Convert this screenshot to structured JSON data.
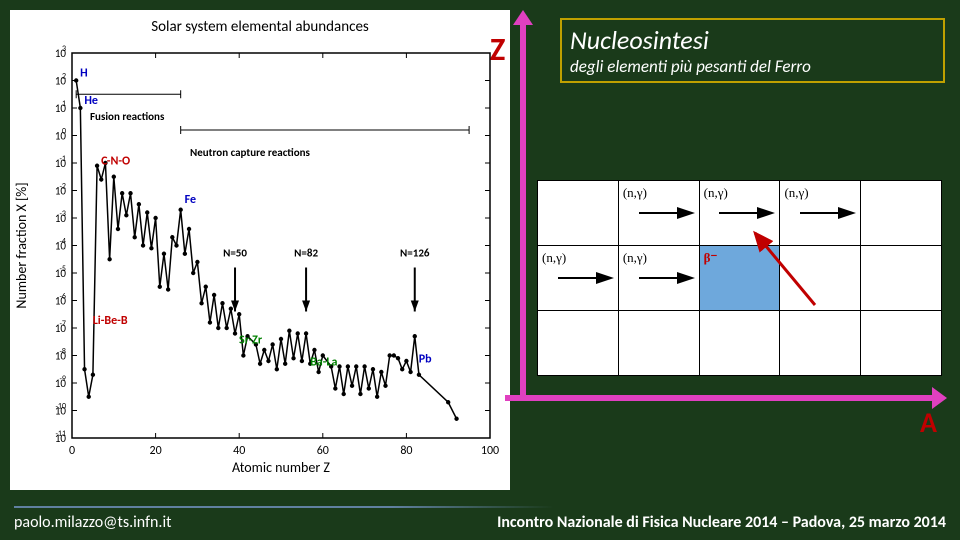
{
  "chart": {
    "title": "Solar system elemental abundances",
    "ylabel": "Number fraction X [%]",
    "xlabel": "Atomic number Z",
    "xlim": [
      0,
      100
    ],
    "xtick_step": 20,
    "ylim_exp": [
      -11,
      3
    ],
    "ytick_exps": [
      -11,
      -10,
      -9,
      -8,
      -7,
      -6,
      -5,
      -4,
      -3,
      -2,
      -1,
      0,
      1,
      2,
      3
    ],
    "fusion_label": "Fusion reactions",
    "neutron_label": "Neutron capture reactions",
    "series_color": "#000000",
    "background_color": "#ffffff",
    "element_labels": [
      {
        "text": "H",
        "x": 1,
        "yexp": 2,
        "color": "#0000c0"
      },
      {
        "text": "He",
        "x": 2,
        "yexp": 1,
        "color": "#0000c0"
      },
      {
        "text": "C-N-O",
        "x": 6,
        "yexp": -1.2,
        "color": "#c00000"
      },
      {
        "text": "Li-Be-B",
        "x": 4,
        "yexp": -7,
        "color": "#c00000"
      },
      {
        "text": "Fe",
        "x": 26,
        "yexp": -2.6,
        "color": "#0000c0"
      },
      {
        "text": "Sr-Zr",
        "x": 39,
        "yexp": -7.7,
        "color": "#008000"
      },
      {
        "text": "Ba-La",
        "x": 56,
        "yexp": -8.5,
        "color": "#008000"
      },
      {
        "text": "Pb",
        "x": 82,
        "yexp": -8.4,
        "color": "#0000c0"
      }
    ],
    "magic_labels": [
      {
        "text": "N=50",
        "x": 39
      },
      {
        "text": "N=82",
        "x": 56
      },
      {
        "text": "N=126",
        "x": 82
      }
    ],
    "data": [
      [
        1,
        2.0
      ],
      [
        2,
        1.0
      ],
      [
        3,
        -8.5
      ],
      [
        4,
        -9.5
      ],
      [
        5,
        -8.7
      ],
      [
        6,
        -1.1
      ],
      [
        7,
        -1.6
      ],
      [
        8,
        -1.0
      ],
      [
        9,
        -4.5
      ],
      [
        10,
        -1.5
      ],
      [
        11,
        -3.4
      ],
      [
        12,
        -2.1
      ],
      [
        13,
        -2.9
      ],
      [
        14,
        -2.1
      ],
      [
        15,
        -3.7
      ],
      [
        16,
        -2.5
      ],
      [
        17,
        -4.0
      ],
      [
        18,
        -2.8
      ],
      [
        19,
        -4.1
      ],
      [
        20,
        -3.0
      ],
      [
        21,
        -5.5
      ],
      [
        22,
        -4.3
      ],
      [
        23,
        -5.6
      ],
      [
        24,
        -3.7
      ],
      [
        25,
        -4.0
      ],
      [
        26,
        -2.7
      ],
      [
        27,
        -4.3
      ],
      [
        28,
        -3.4
      ],
      [
        29,
        -5.0
      ],
      [
        30,
        -4.6
      ],
      [
        31,
        -6.1
      ],
      [
        32,
        -5.5
      ],
      [
        33,
        -6.8
      ],
      [
        34,
        -5.8
      ],
      [
        35,
        -7.0
      ],
      [
        36,
        -6.1
      ],
      [
        37,
        -7.0
      ],
      [
        38,
        -6.3
      ],
      [
        39,
        -7.2
      ],
      [
        40,
        -6.5
      ],
      [
        41,
        -8.0
      ],
      [
        42,
        -7.3
      ],
      [
        44,
        -7.6
      ],
      [
        45,
        -8.3
      ],
      [
        46,
        -7.8
      ],
      [
        47,
        -8.2
      ],
      [
        48,
        -7.6
      ],
      [
        49,
        -8.5
      ],
      [
        50,
        -7.4
      ],
      [
        51,
        -8.3
      ],
      [
        52,
        -7.1
      ],
      [
        53,
        -8.1
      ],
      [
        54,
        -7.2
      ],
      [
        55,
        -8.2
      ],
      [
        56,
        -7.2
      ],
      [
        57,
        -8.3
      ],
      [
        58,
        -7.8
      ],
      [
        59,
        -8.6
      ],
      [
        60,
        -8.0
      ],
      [
        62,
        -8.4
      ],
      [
        63,
        -9.2
      ],
      [
        64,
        -8.4
      ],
      [
        65,
        -9.4
      ],
      [
        66,
        -8.4
      ],
      [
        67,
        -9.1
      ],
      [
        68,
        -8.4
      ],
      [
        69,
        -9.4
      ],
      [
        70,
        -8.4
      ],
      [
        71,
        -9.2
      ],
      [
        72,
        -8.5
      ],
      [
        73,
        -9.5
      ],
      [
        74,
        -8.6
      ],
      [
        75,
        -9.1
      ],
      [
        76,
        -8.0
      ],
      [
        77,
        -8.0
      ],
      [
        78,
        -8.1
      ],
      [
        79,
        -8.5
      ],
      [
        80,
        -8.2
      ],
      [
        81,
        -8.6
      ],
      [
        82,
        -7.3
      ],
      [
        83,
        -8.7
      ],
      [
        90,
        -9.7
      ],
      [
        92,
        -10.3
      ]
    ]
  },
  "zlabel": "Z",
  "alabel": "A",
  "title_box": {
    "main": "Nucleosintesi",
    "sub": "degli elementi più pesanti del Ferro",
    "border_color": "#c0a000",
    "text_color": "#ffffff"
  },
  "grid": {
    "neutron_capture": "(n,γ)",
    "beta_decay": "β⁻",
    "cell_blue_bg": "#6ea8dc",
    "beta_color": "#c00000",
    "beta_arrow_color": "#c00000",
    "cells": [
      [
        null,
        {
          "label": "(n,γ)",
          "arrow": true
        },
        {
          "label": "(n,γ)",
          "arrow": true
        },
        {
          "label": "(n,γ)",
          "arrow": true
        },
        null
      ],
      [
        {
          "label": "(n,γ)",
          "arrow": true
        },
        {
          "label": "(n,γ)",
          "arrow": true,
          "blue": false
        },
        {
          "beta": "β⁻",
          "blue": true
        },
        null,
        null
      ],
      [
        null,
        null,
        null,
        null,
        null
      ]
    ]
  },
  "footer": {
    "left": "paolo.milazzo@ts.infn.it",
    "right": "Incontro Nazionale di Fisica Nucleare 2014 – Padova, 25 marzo 2014"
  },
  "colors": {
    "page_bg": "#1a3a1a",
    "magenta": "#e040c0",
    "dark_red": "#c00000"
  }
}
